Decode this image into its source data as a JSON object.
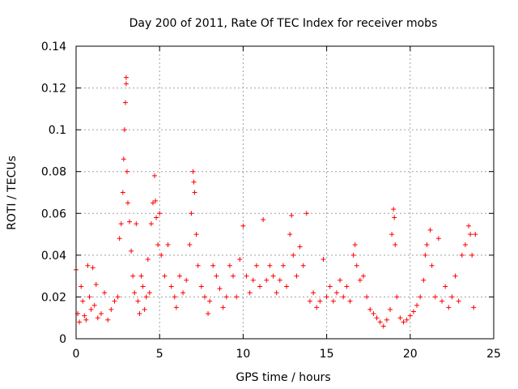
{
  "chart_data": {
    "type": "scatter",
    "title": "Day 200 of 2011, Rate Of TEC Index for receiver mobs",
    "xlabel": "GPS time / hours",
    "ylabel": "ROTI / TECUs",
    "xlim": [
      0,
      25
    ],
    "ylim": [
      0,
      0.14
    ],
    "xticks": [
      0,
      5,
      10,
      15,
      20,
      25
    ],
    "xtick_labels": [
      "0",
      "5",
      "10",
      "15",
      "20",
      "25"
    ],
    "yticks": [
      0,
      0.02,
      0.04,
      0.06,
      0.08,
      0.1,
      0.12,
      0.14
    ],
    "ytick_labels": [
      "0",
      "0.02",
      "0.04",
      "0.06",
      "0.08",
      "0.1",
      "0.12",
      "0.14"
    ],
    "grid": true,
    "marker": "+",
    "color": "#ff0000",
    "series": [
      {
        "points": [
          [
            0.0,
            0.033
          ],
          [
            0.1,
            0.012
          ],
          [
            0.2,
            0.008
          ],
          [
            0.3,
            0.025
          ],
          [
            0.4,
            0.018
          ],
          [
            0.5,
            0.011
          ],
          [
            0.6,
            0.009
          ],
          [
            0.7,
            0.035
          ],
          [
            0.8,
            0.02
          ],
          [
            0.9,
            0.014
          ],
          [
            1.0,
            0.034
          ],
          [
            1.1,
            0.016
          ],
          [
            1.2,
            0.026
          ],
          [
            1.3,
            0.01
          ],
          [
            1.5,
            0.012
          ],
          [
            1.7,
            0.022
          ],
          [
            1.9,
            0.009
          ],
          [
            2.1,
            0.014
          ],
          [
            2.3,
            0.018
          ],
          [
            2.5,
            0.02
          ],
          [
            2.6,
            0.048
          ],
          [
            2.7,
            0.055
          ],
          [
            2.8,
            0.07
          ],
          [
            2.85,
            0.086
          ],
          [
            2.9,
            0.1
          ],
          [
            2.95,
            0.113
          ],
          [
            3.0,
            0.125
          ],
          [
            3.0,
            0.122
          ],
          [
            3.05,
            0.08
          ],
          [
            3.1,
            0.065
          ],
          [
            3.2,
            0.056
          ],
          [
            3.3,
            0.042
          ],
          [
            3.4,
            0.03
          ],
          [
            3.5,
            0.022
          ],
          [
            3.6,
            0.055
          ],
          [
            3.7,
            0.018
          ],
          [
            3.8,
            0.012
          ],
          [
            3.9,
            0.03
          ],
          [
            4.0,
            0.025
          ],
          [
            4.1,
            0.014
          ],
          [
            4.2,
            0.02
          ],
          [
            4.3,
            0.038
          ],
          [
            4.4,
            0.022
          ],
          [
            4.5,
            0.055
          ],
          [
            4.6,
            0.065
          ],
          [
            4.7,
            0.078
          ],
          [
            4.75,
            0.066
          ],
          [
            4.8,
            0.058
          ],
          [
            4.9,
            0.045
          ],
          [
            5.0,
            0.06
          ],
          [
            5.1,
            0.04
          ],
          [
            5.3,
            0.03
          ],
          [
            5.5,
            0.045
          ],
          [
            5.7,
            0.025
          ],
          [
            5.9,
            0.02
          ],
          [
            6.0,
            0.015
          ],
          [
            6.2,
            0.03
          ],
          [
            6.4,
            0.022
          ],
          [
            6.6,
            0.028
          ],
          [
            6.8,
            0.045
          ],
          [
            6.9,
            0.06
          ],
          [
            7.0,
            0.08
          ],
          [
            7.05,
            0.075
          ],
          [
            7.1,
            0.07
          ],
          [
            7.2,
            0.05
          ],
          [
            7.3,
            0.035
          ],
          [
            7.5,
            0.025
          ],
          [
            7.7,
            0.02
          ],
          [
            7.9,
            0.012
          ],
          [
            8.0,
            0.018
          ],
          [
            8.2,
            0.035
          ],
          [
            8.4,
            0.03
          ],
          [
            8.6,
            0.024
          ],
          [
            8.8,
            0.015
          ],
          [
            9.0,
            0.02
          ],
          [
            9.2,
            0.035
          ],
          [
            9.4,
            0.03
          ],
          [
            9.6,
            0.02
          ],
          [
            9.8,
            0.038
          ],
          [
            10.0,
            0.054
          ],
          [
            10.2,
            0.03
          ],
          [
            10.4,
            0.022
          ],
          [
            10.6,
            0.028
          ],
          [
            10.8,
            0.035
          ],
          [
            11.0,
            0.025
          ],
          [
            11.2,
            0.057
          ],
          [
            11.4,
            0.028
          ],
          [
            11.6,
            0.035
          ],
          [
            11.8,
            0.03
          ],
          [
            12.0,
            0.022
          ],
          [
            12.2,
            0.028
          ],
          [
            12.4,
            0.035
          ],
          [
            12.6,
            0.025
          ],
          [
            12.8,
            0.05
          ],
          [
            12.9,
            0.059
          ],
          [
            13.0,
            0.04
          ],
          [
            13.2,
            0.03
          ],
          [
            13.4,
            0.044
          ],
          [
            13.6,
            0.035
          ],
          [
            13.8,
            0.06
          ],
          [
            14.0,
            0.018
          ],
          [
            14.2,
            0.022
          ],
          [
            14.4,
            0.015
          ],
          [
            14.6,
            0.018
          ],
          [
            14.8,
            0.038
          ],
          [
            15.0,
            0.02
          ],
          [
            15.2,
            0.025
          ],
          [
            15.4,
            0.018
          ],
          [
            15.6,
            0.022
          ],
          [
            15.8,
            0.028
          ],
          [
            16.0,
            0.02
          ],
          [
            16.2,
            0.025
          ],
          [
            16.4,
            0.018
          ],
          [
            16.6,
            0.04
          ],
          [
            16.7,
            0.045
          ],
          [
            16.8,
            0.035
          ],
          [
            17.0,
            0.028
          ],
          [
            17.2,
            0.03
          ],
          [
            17.4,
            0.02
          ],
          [
            17.6,
            0.014
          ],
          [
            17.8,
            0.012
          ],
          [
            18.0,
            0.01
          ],
          [
            18.2,
            0.008
          ],
          [
            18.4,
            0.006
          ],
          [
            18.6,
            0.009
          ],
          [
            18.8,
            0.014
          ],
          [
            18.9,
            0.05
          ],
          [
            19.0,
            0.062
          ],
          [
            19.05,
            0.058
          ],
          [
            19.1,
            0.045
          ],
          [
            19.2,
            0.02
          ],
          [
            19.4,
            0.01
          ],
          [
            19.6,
            0.008
          ],
          [
            19.8,
            0.009
          ],
          [
            20.0,
            0.011
          ],
          [
            20.2,
            0.013
          ],
          [
            20.4,
            0.016
          ],
          [
            20.6,
            0.02
          ],
          [
            20.8,
            0.028
          ],
          [
            20.9,
            0.04
          ],
          [
            21.0,
            0.045
          ],
          [
            21.2,
            0.052
          ],
          [
            21.3,
            0.035
          ],
          [
            21.5,
            0.02
          ],
          [
            21.7,
            0.048
          ],
          [
            21.9,
            0.018
          ],
          [
            22.1,
            0.025
          ],
          [
            22.3,
            0.015
          ],
          [
            22.5,
            0.02
          ],
          [
            22.7,
            0.03
          ],
          [
            22.9,
            0.018
          ],
          [
            23.1,
            0.04
          ],
          [
            23.3,
            0.045
          ],
          [
            23.5,
            0.054
          ],
          [
            23.6,
            0.05
          ],
          [
            23.7,
            0.04
          ],
          [
            23.8,
            0.015
          ],
          [
            23.9,
            0.05
          ]
        ]
      }
    ]
  }
}
